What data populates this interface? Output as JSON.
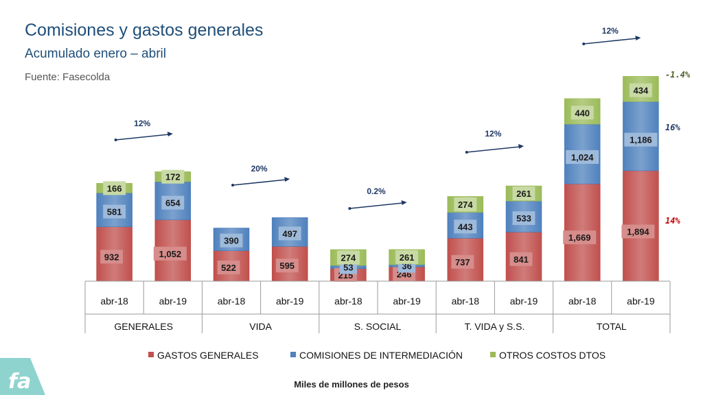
{
  "header": {
    "title": "Comisiones y gastos generales",
    "subtitle": "Acumulado enero – abril",
    "source": "Fuente: Fasecolda"
  },
  "footer": {
    "units": "Miles de millones de pesos"
  },
  "logo": {
    "icon": "fasecolda-logo-icon",
    "text": "fa"
  },
  "colors": {
    "gastos": "#c0504d",
    "comisiones": "#4f81bd",
    "otros": "#9bbb59",
    "arrow": "#1f3864",
    "label_dark": "#1f3864",
    "label_red": "#c00000",
    "label_green": "#4f6228"
  },
  "chart_data": {
    "type": "bar",
    "stacked": true,
    "groups": [
      "GENERALES",
      "VIDA",
      "S. SOCIAL",
      "T. VIDA y S.S.",
      "TOTAL"
    ],
    "categories": [
      "abr-18",
      "abr-19",
      "abr-18",
      "abr-19",
      "abr-18",
      "abr-19",
      "abr-18",
      "abr-19",
      "abr-18",
      "abr-19"
    ],
    "series": [
      {
        "name": "GASTOS GENERALES",
        "values": [
          932,
          1052,
          522,
          595,
          215,
          246,
          737,
          841,
          1669,
          1894
        ],
        "labels": [
          "932",
          "1,052",
          "522",
          "595",
          "215",
          "246",
          "737",
          "841",
          "1,669",
          "1,894"
        ]
      },
      {
        "name": "COMISIONES DE INTERMEDIACIÓN",
        "values": [
          581,
          654,
          390,
          497,
          53,
          36,
          443,
          533,
          1024,
          1186
        ],
        "labels": [
          "581",
          "654",
          "390",
          "497",
          "53",
          "36",
          "443",
          "533",
          "1,024",
          "1,186"
        ]
      },
      {
        "name": "OTROS COSTOS DTOS",
        "values": [
          166,
          172,
          null,
          null,
          274,
          261,
          274,
          261,
          440,
          434
        ],
        "labels": [
          "166",
          "172",
          "",
          "",
          "274",
          "261",
          "274",
          "261",
          "440",
          "434"
        ]
      }
    ],
    "growth_annotations": [
      "12%",
      "20%",
      "0.2%",
      "12%",
      "12%"
    ],
    "total_change_labels": [
      "-1.4%",
      "16%",
      "14%"
    ],
    "legend_position": "bottom",
    "grid": false,
    "ylim": [
      0,
      3600
    ]
  }
}
